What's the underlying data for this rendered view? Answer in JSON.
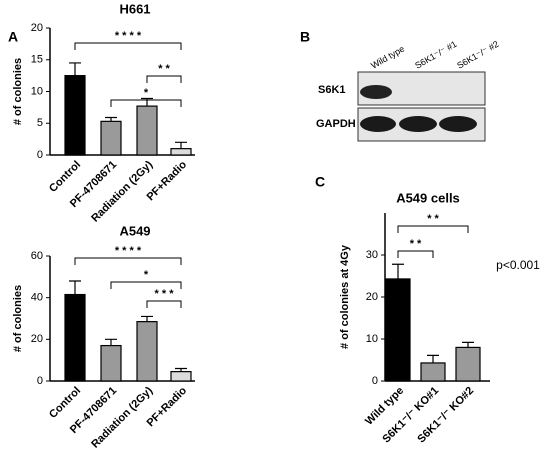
{
  "panels": [
    "A",
    "B",
    "C"
  ],
  "blot": {
    "lanes": [
      "Wild type",
      "S6K1⁻/⁻ #1",
      "S6K1⁻/⁻ #2"
    ],
    "rows": [
      "S6K1",
      "GAPDH"
    ]
  },
  "chart_data": [
    {
      "type": "bar",
      "title": "H661",
      "y_label": "# of colonies",
      "categories": [
        "Control",
        "PF-4708671",
        "Radiation (2Gy)",
        "PF+Radio"
      ],
      "values": [
        12.5,
        5.3,
        7.7,
        1.0
      ],
      "errors": [
        2.0,
        0.6,
        1.2,
        1.0
      ],
      "colors": [
        "#000000",
        "#9a9a9a",
        "#9a9a9a",
        "#dcdcdc"
      ],
      "ylim": [
        0,
        20
      ],
      "yticks": [
        0,
        5,
        10,
        15,
        20
      ],
      "annotations": [
        "* * * *",
        "* *",
        "*"
      ]
    },
    {
      "type": "bar",
      "title": "A549",
      "y_label": "# of colonies",
      "categories": [
        "Control",
        "PF-4708671",
        "Radiation (2Gy)",
        "PF+Radio"
      ],
      "values": [
        41.5,
        17,
        28.5,
        4.5
      ],
      "errors": [
        6.5,
        3,
        2.5,
        1.5
      ],
      "colors": [
        "#000000",
        "#9a9a9a",
        "#9a9a9a",
        "#dcdcdc"
      ],
      "ylim": [
        0,
        60
      ],
      "yticks": [
        0,
        20,
        40,
        60
      ],
      "annotations": [
        "* * * *",
        "*",
        "* * *"
      ]
    },
    {
      "type": "bar",
      "title": "A549 cells",
      "y_label": "# of colonies at 4Gy",
      "categories": [
        "Wild type",
        "S6K1⁻/⁻ KO#1",
        "S6K1⁻/⁻ KO#2"
      ],
      "values": [
        24.3,
        4.3,
        8
      ],
      "errors": [
        3.5,
        1.8,
        1.2
      ],
      "colors": [
        "#000000",
        "#9a9a9a",
        "#9a9a9a"
      ],
      "ylim": [
        0,
        40
      ],
      "yticks": [
        0,
        10,
        20,
        30
      ],
      "annotations": [
        "* *",
        "* *",
        "p<0.001"
      ]
    }
  ]
}
